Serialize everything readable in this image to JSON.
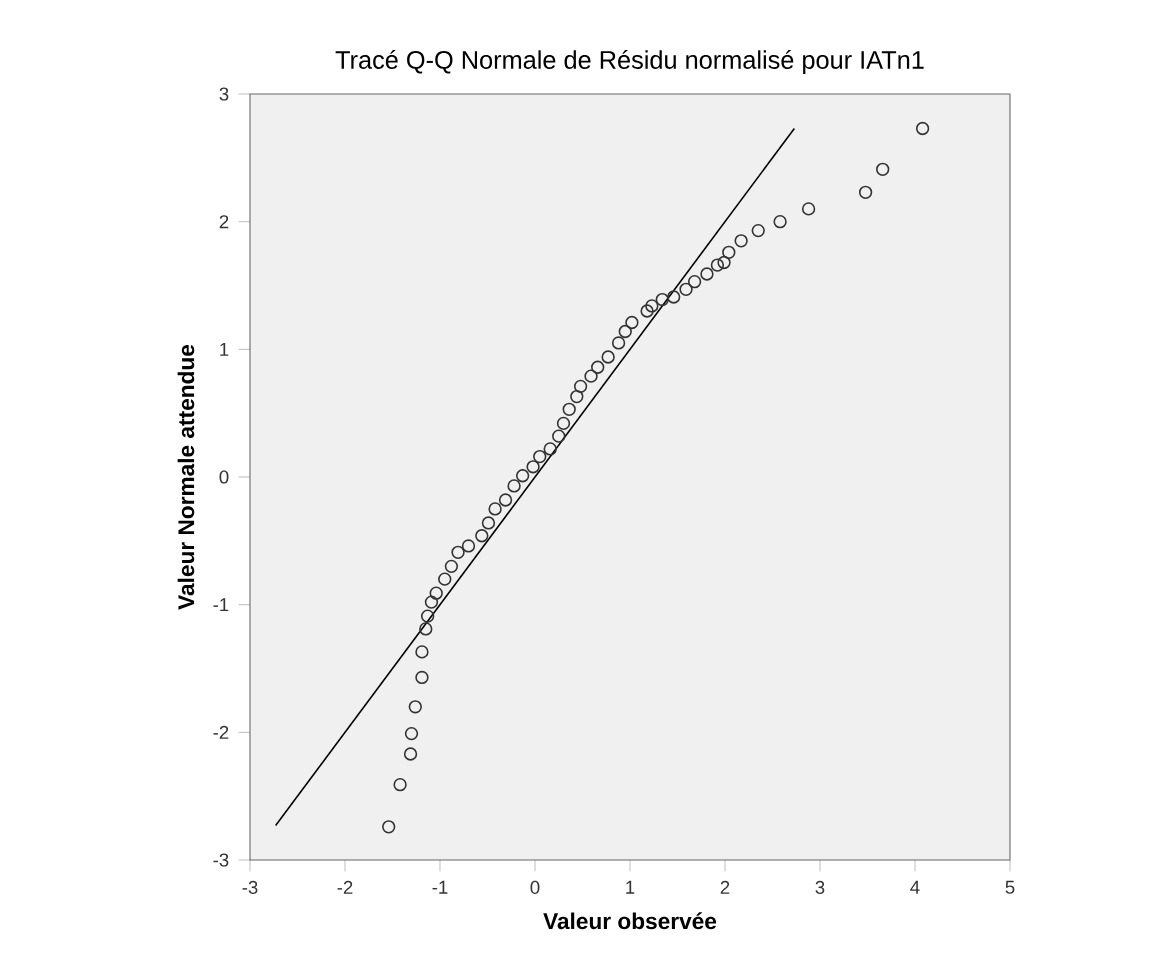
{
  "chart_data": {
    "type": "scatter",
    "title": "Tracé Q-Q Normale de Résidu normalisé pour IATn1",
    "xlabel": "Valeur observée",
    "ylabel": "Valeur Normale attendue",
    "xlim": [
      -3,
      5
    ],
    "ylim": [
      -3,
      3
    ],
    "xticks": [
      -3,
      -2,
      -1,
      0,
      1,
      2,
      3,
      4,
      5
    ],
    "yticks": [
      -3,
      -2,
      -1,
      0,
      1,
      2,
      3
    ],
    "grid": false,
    "series": [
      {
        "marker": "circle",
        "color": "#333333",
        "x": [
          4.08,
          3.66,
          3.48,
          2.88,
          2.58,
          2.35,
          2.17,
          2.04,
          1.99,
          1.92,
          1.81,
          1.68,
          1.59,
          1.46,
          1.34,
          1.23,
          1.18,
          1.02,
          0.95,
          0.88,
          0.77,
          0.66,
          0.59,
          0.48,
          0.44,
          0.36,
          0.3,
          0.25,
          0.16,
          0.05,
          -0.02,
          -0.13,
          -0.22,
          -0.31,
          -0.42,
          -0.49,
          -0.56,
          -0.7,
          -0.81,
          -0.88,
          -0.95,
          -1.04,
          -1.09,
          -1.13,
          -1.15,
          -1.19,
          -1.19,
          -1.26,
          -1.3,
          -1.31,
          -1.42,
          -1.54
        ],
        "values": [
          2.73,
          2.41,
          2.23,
          2.1,
          2.0,
          1.93,
          1.85,
          1.76,
          1.68,
          1.66,
          1.59,
          1.53,
          1.47,
          1.41,
          1.39,
          1.34,
          1.3,
          1.21,
          1.14,
          1.05,
          0.94,
          0.86,
          0.79,
          0.71,
          0.63,
          0.53,
          0.42,
          0.32,
          0.22,
          0.16,
          0.08,
          0.01,
          -0.07,
          -0.18,
          -0.25,
          -0.36,
          -0.46,
          -0.54,
          -0.59,
          -0.7,
          -0.8,
          -0.91,
          -0.98,
          -1.09,
          -1.19,
          -1.37,
          -1.57,
          -1.8,
          -2.01,
          -2.17,
          -2.41,
          -2.74
        ]
      },
      {
        "type": "line",
        "color": "#000000",
        "x": [
          -2.73,
          2.73
        ],
        "values": [
          -2.73,
          2.73
        ]
      }
    ]
  }
}
